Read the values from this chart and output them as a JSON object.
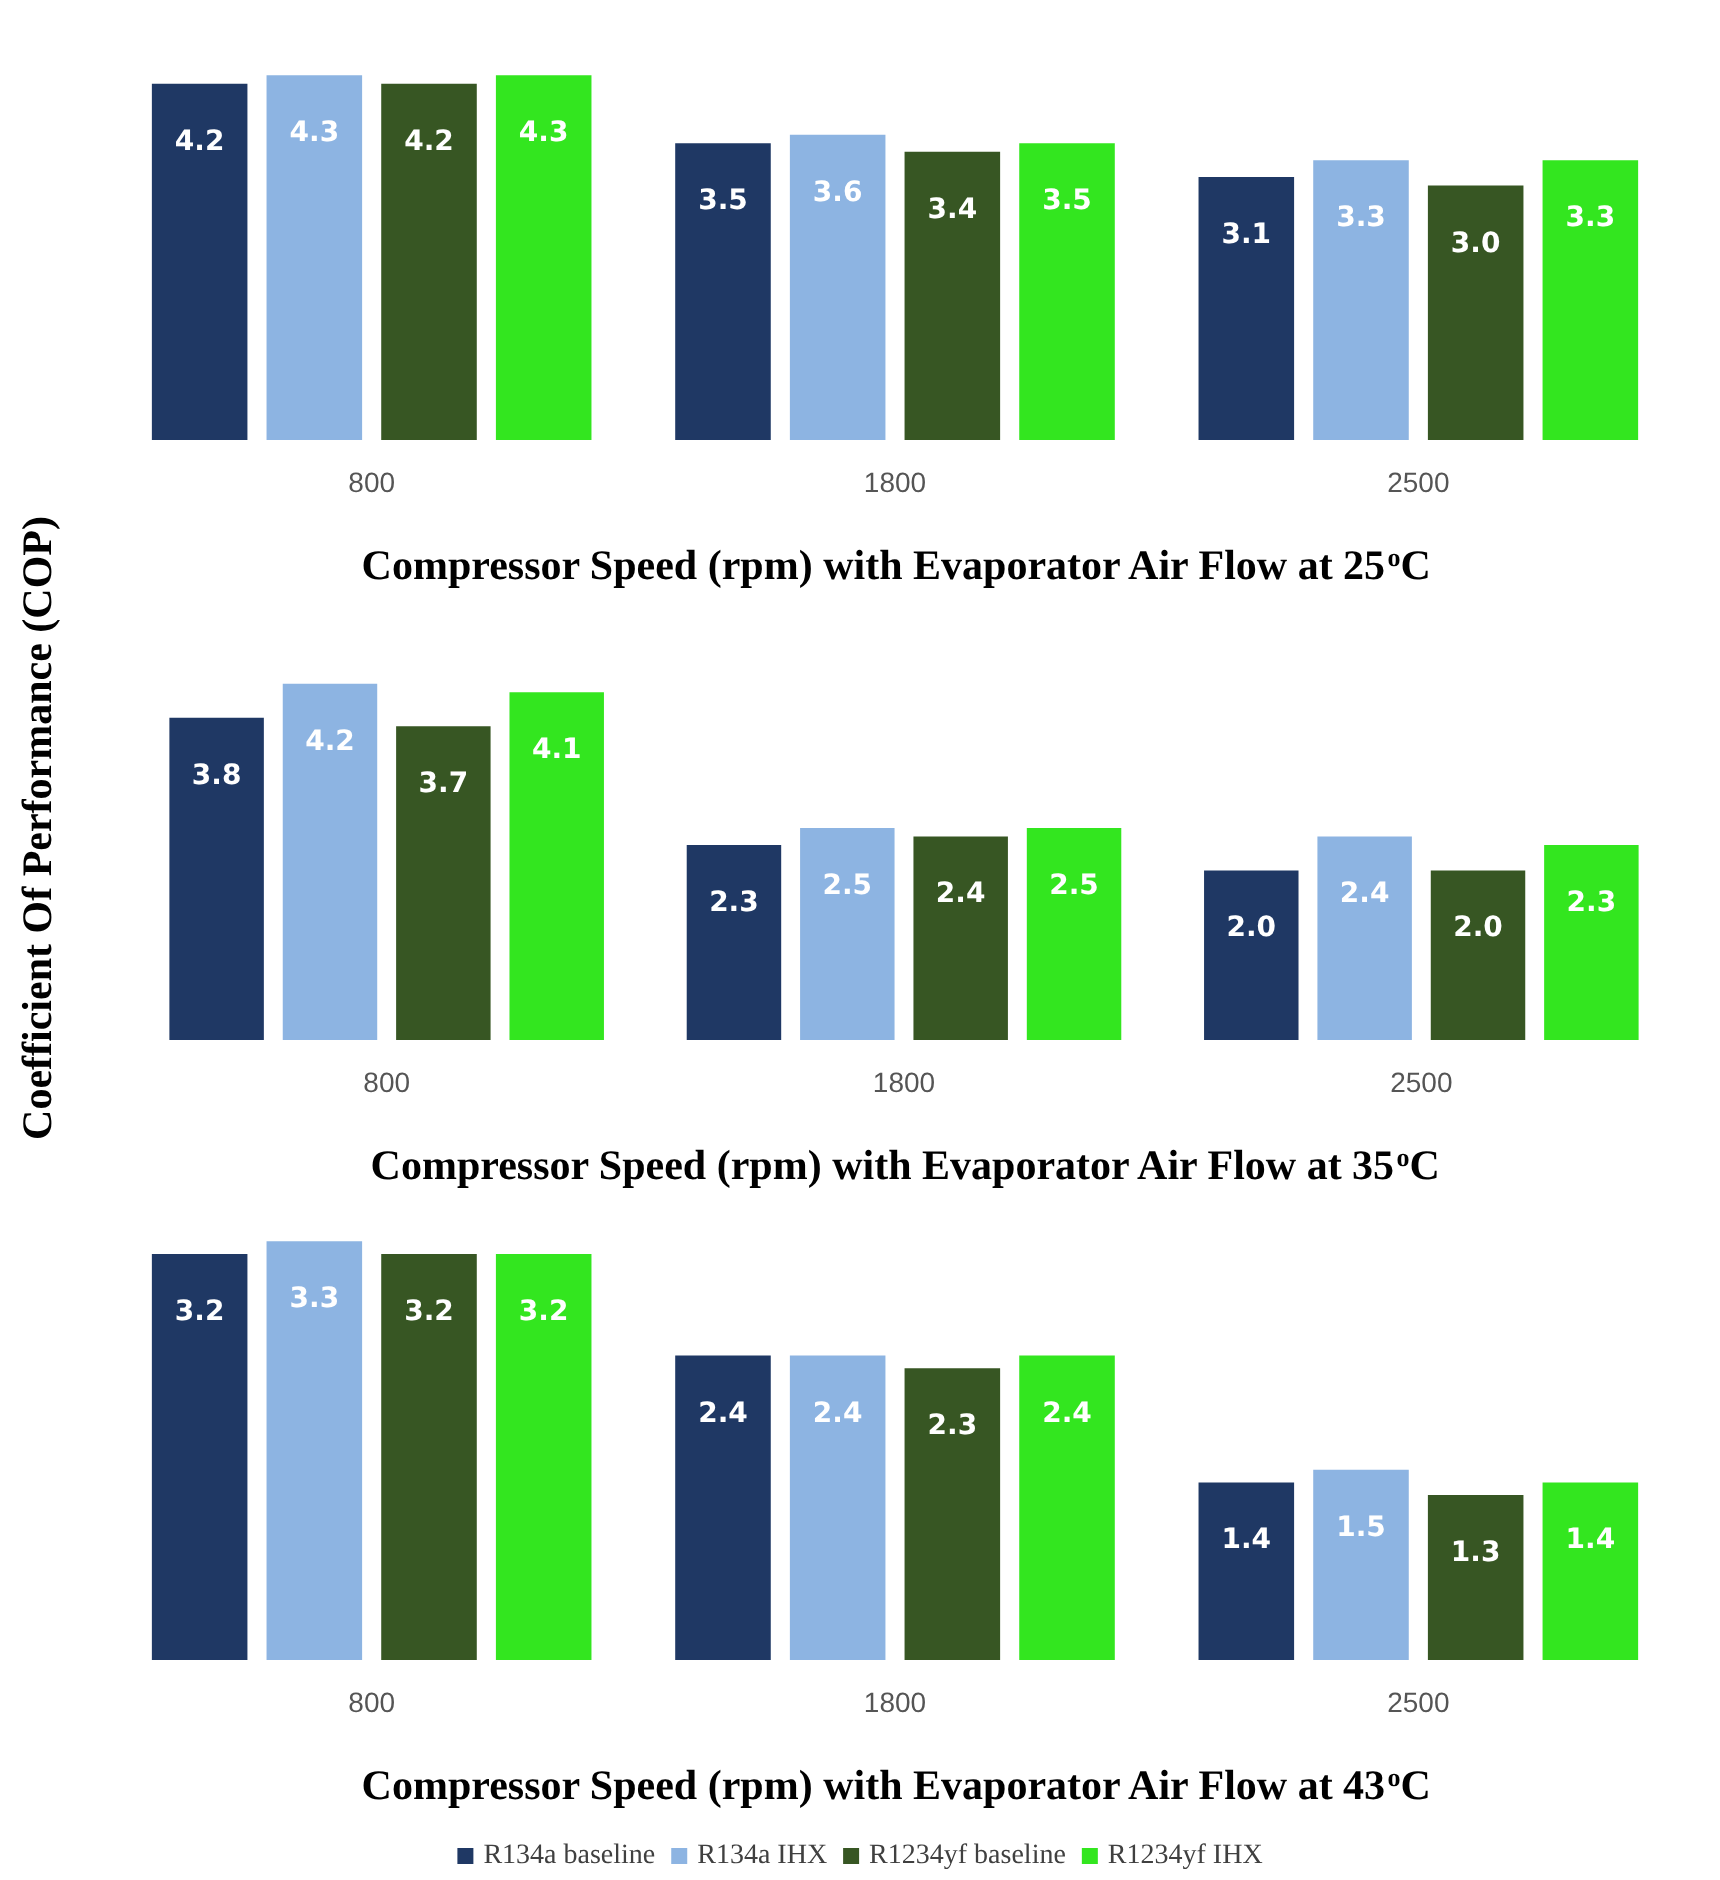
{
  "chart_data": [
    {
      "type": "bar",
      "xlabel": "Compressor Speed (rpm) with Evaporator Air Flow at 25$^{o}$C",
      "categories": [
        "800",
        "1800",
        "2500"
      ],
      "legend": false,
      "series": [
        {
          "color": "#1f3864",
          "values": [
            4.2,
            3.5,
            3.1
          ],
          "value_labels": [
            "4.2",
            "3.5",
            "3.1"
          ]
        },
        {
          "color": "#8db4e2",
          "values": [
            4.3,
            3.6,
            3.3
          ],
          "value_labels": [
            "4.3",
            "3.6",
            "3.3"
          ]
        },
        {
          "color": "#375623",
          "values": [
            4.2,
            3.4,
            3.0
          ],
          "value_labels": [
            "4.2",
            "3.4",
            "3.0"
          ]
        },
        {
          "color": "#33e61f",
          "values": [
            4.3,
            3.5,
            3.3
          ],
          "value_labels": [
            "4.3",
            "3.5",
            "3.3"
          ]
        }
      ]
    },
    {
      "type": "bar",
      "xlabel": "Compressor Speed (rpm) with Evaporator Air Flow at 35$^{o}$C",
      "ylabel": "Coefficient Of Performance (COP)",
      "categories": [
        "800",
        "1800",
        "2500"
      ],
      "legend": false,
      "series": [
        {
          "color": "#1f3864",
          "values": [
            3.8,
            2.3,
            2.0
          ],
          "value_labels": [
            "3.8",
            "2.3",
            "2.0"
          ]
        },
        {
          "color": "#8db4e2",
          "values": [
            4.2,
            2.5,
            2.4
          ],
          "value_labels": [
            "4.2",
            "2.5",
            "2.4"
          ]
        },
        {
          "color": "#375623",
          "values": [
            3.7,
            2.4,
            2.0
          ],
          "value_labels": [
            "3.7",
            "2.4",
            "2.0"
          ]
        },
        {
          "color": "#33e61f",
          "values": [
            4.1,
            2.5,
            2.3
          ],
          "value_labels": [
            "4.1",
            "2.5",
            "2.3"
          ]
        }
      ]
    },
    {
      "type": "bar",
      "xlabel": "Compressor Speed (rpm) with Evaporator Air Flow at 43$^{o}$C",
      "categories": [
        "800",
        "1800",
        "2500"
      ],
      "legend": "bottom",
      "series": [
        {
          "name": "R134a baseline",
          "color": "#1f3864",
          "values": [
            3.2,
            2.4,
            1.4
          ],
          "value_labels": [
            "3.2",
            "2.4",
            "1.4"
          ]
        },
        {
          "name": "R134a IHX",
          "color": "#8db4e2",
          "values": [
            3.3,
            2.4,
            1.5
          ],
          "value_labels": [
            "3.3",
            "2.4",
            "1.5"
          ]
        },
        {
          "name": "R1234yf baseline",
          "color": "#375623",
          "values": [
            3.2,
            2.3,
            1.3
          ],
          "value_labels": [
            "3.2",
            "2.3",
            "1.3"
          ]
        },
        {
          "name": "R1234yf IHX",
          "color": "#33e61f",
          "values": [
            3.2,
            2.4,
            1.4
          ],
          "value_labels": [
            "3.2",
            "2.4",
            "1.4"
          ]
        }
      ]
    }
  ]
}
